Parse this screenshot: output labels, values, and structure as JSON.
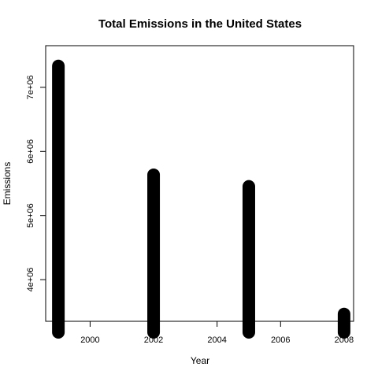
{
  "chart_data": {
    "type": "bar",
    "title": "Total Emissions in the United States",
    "xlabel": "Year",
    "ylabel": "Emissions",
    "x": [
      1999,
      2002,
      2005,
      2008
    ],
    "values": [
      7332967,
      5635780,
      5454703,
      3464206
    ],
    "xlim": [
      1998.6,
      2008.3
    ],
    "ylim": [
      3350000,
      7650000
    ],
    "xticks": [
      2000,
      2002,
      2004,
      2006,
      2008
    ],
    "xtick_labels": [
      "2000",
      "2002",
      "2004",
      "2006",
      "2008"
    ],
    "yticks": [
      4000000,
      5000000,
      6000000,
      7000000
    ],
    "ytick_labels": [
      "4e+06",
      "5e+06",
      "6e+06",
      "7e+06"
    ],
    "bar_color": "#000000",
    "grid": false,
    "legend": "none"
  }
}
